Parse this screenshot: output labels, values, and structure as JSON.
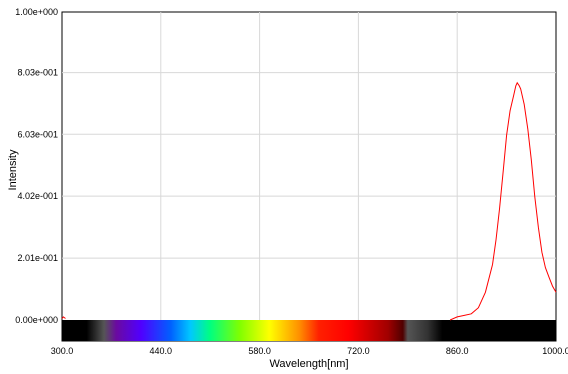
{
  "chart_data": {
    "type": "line",
    "xlabel": "Wavelength[nm]",
    "ylabel": "Intensity",
    "xlim": [
      300,
      1000
    ],
    "ylim": [
      0,
      1.0
    ],
    "x_ticks": [
      "300.0",
      "440.0",
      "580.0",
      "720.0",
      "860.0",
      "1000.0"
    ],
    "y_ticks": [
      "0.00e+000",
      "2.01e-001",
      "4.02e-001",
      "6.03e-001",
      "8.03e-001",
      "1.00e+000"
    ],
    "grid": true,
    "spectrum_bar": true,
    "series": [
      {
        "color": "#ff0000",
        "x": [
          300,
          302,
          305,
          850,
          860,
          870,
          880,
          890,
          900,
          910,
          915,
          920,
          925,
          930,
          935,
          940,
          943,
          945,
          948,
          950,
          955,
          960,
          965,
          970,
          975,
          980,
          985,
          990,
          995,
          1000
        ],
        "y": [
          0.005,
          0.01,
          0.005,
          0.0,
          0.01,
          0.015,
          0.02,
          0.04,
          0.09,
          0.18,
          0.26,
          0.36,
          0.48,
          0.6,
          0.68,
          0.73,
          0.76,
          0.77,
          0.76,
          0.75,
          0.7,
          0.62,
          0.52,
          0.4,
          0.3,
          0.22,
          0.17,
          0.14,
          0.11,
          0.09
        ]
      }
    ]
  }
}
